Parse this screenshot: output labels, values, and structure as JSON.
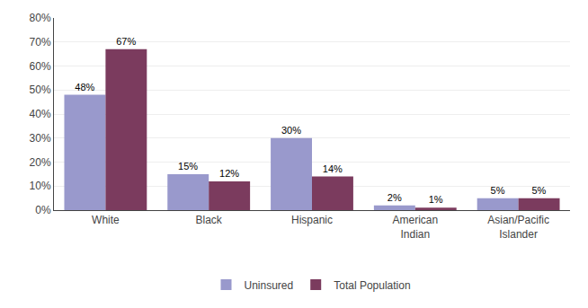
{
  "chart_data": {
    "type": "bar",
    "categories": [
      "White",
      "Black",
      "Hispanic",
      "American\nIndian",
      "Asian/Pacific\nIslander"
    ],
    "series": [
      {
        "name": "Uninsured",
        "color": "#9999CC",
        "values": [
          48,
          15,
          30,
          2,
          5
        ],
        "value_labels": [
          "48%",
          "15%",
          "30%",
          "2%",
          "5%"
        ]
      },
      {
        "name": "Total Population",
        "color": "#7B3B5E",
        "values": [
          67,
          12,
          14,
          1,
          5
        ],
        "value_labels": [
          "67%",
          "12%",
          "14%",
          "1%",
          "5%"
        ]
      }
    ],
    "ylim": [
      0,
      80
    ],
    "yticks": [
      {
        "value": 0,
        "label": "0%"
      },
      {
        "value": 10,
        "label": "10%"
      },
      {
        "value": 20,
        "label": "20%"
      },
      {
        "value": 30,
        "label": "30%"
      },
      {
        "value": 40,
        "label": "40%"
      },
      {
        "value": 50,
        "label": "50%"
      },
      {
        "value": 60,
        "label": "60%"
      },
      {
        "value": 70,
        "label": "70%"
      },
      {
        "value": 80,
        "label": "80%"
      }
    ],
    "grid": true,
    "data_labels": true,
    "legend": "bottom"
  }
}
